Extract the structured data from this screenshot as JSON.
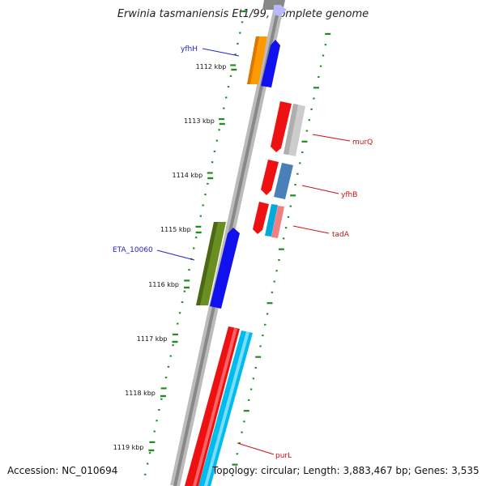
{
  "title": "Erwinia tasmaniensis Et1/99, complete genome",
  "footer": {
    "accession": "Accession: NC_010694",
    "topology": "Topology: circular; Length: 3,883,467 bp; Genes: 3,535"
  },
  "colors": {
    "forward_label": "#2222cc",
    "reverse_label": "#cc1111",
    "tick_green": "#228b22",
    "backbone": "#888888"
  },
  "kbp_ticks": [
    "1112 kbp",
    "1113 kbp",
    "1114 kbp",
    "1115 kbp",
    "1116 kbp",
    "1117 kbp",
    "1118 kbp",
    "1119 kbp"
  ],
  "genes": [
    {
      "label": "yfhH",
      "strand": "forward"
    },
    {
      "label": "murQ",
      "strand": "reverse"
    },
    {
      "label": "yfhB",
      "strand": "reverse"
    },
    {
      "label": "tadA",
      "strand": "reverse"
    },
    {
      "label": "ETA_10060",
      "strand": "forward"
    },
    {
      "label": "purL",
      "strand": "reverse"
    }
  ]
}
